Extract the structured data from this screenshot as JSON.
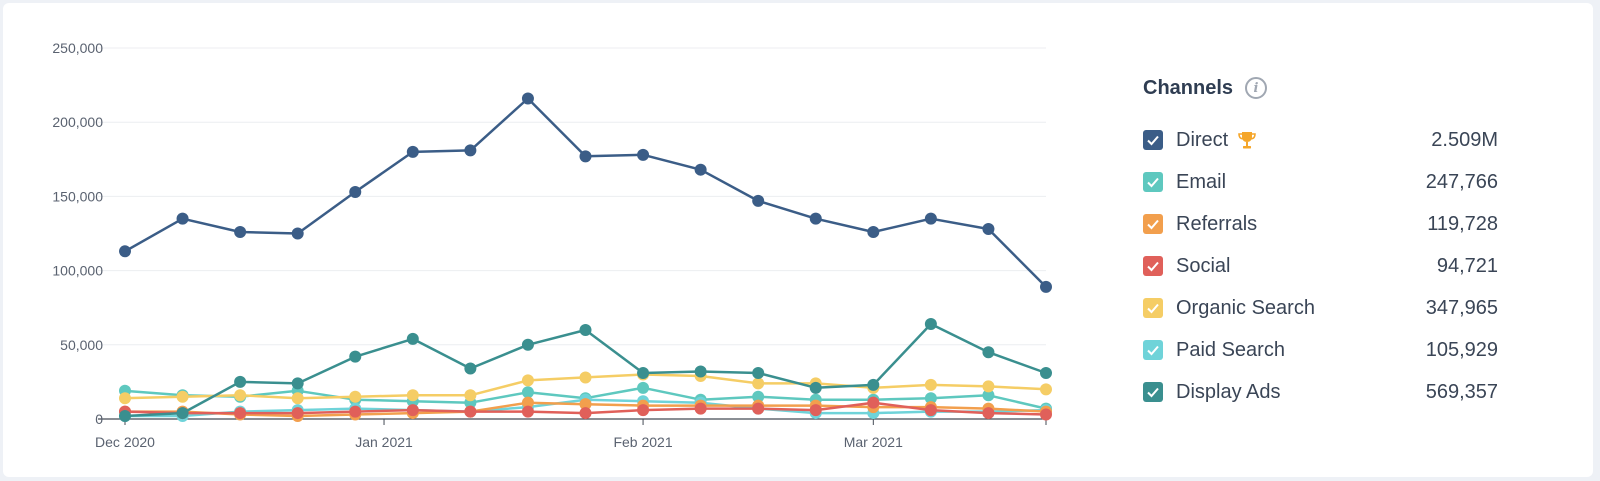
{
  "legend": {
    "title": "Channels",
    "info_icon": "info-icon",
    "items": [
      {
        "name": "Direct",
        "value": "2.509M",
        "color": "#3b5d87",
        "badge_icon": "trophy-icon"
      },
      {
        "name": "Email",
        "value": "247,766",
        "color": "#5ec8bf"
      },
      {
        "name": "Referrals",
        "value": "119,728",
        "color": "#f29f4d"
      },
      {
        "name": "Social",
        "value": "94,721",
        "color": "#e0605a"
      },
      {
        "name": "Organic Search",
        "value": "347,965",
        "color": "#f5cd65"
      },
      {
        "name": "Paid Search",
        "value": "105,929",
        "color": "#6fd3d9"
      },
      {
        "name": "Display Ads",
        "value": "569,357",
        "color": "#3a8f8f"
      }
    ]
  },
  "chart_data": {
    "type": "line",
    "ylim": [
      0,
      250000
    ],
    "y_ticks": [
      0,
      50000,
      100000,
      150000,
      200000,
      250000
    ],
    "y_tick_labels": [
      "0",
      "50,000",
      "100,000",
      "150,000",
      "200,000",
      "250,000"
    ],
    "x_ticks": [
      {
        "label": "Dec 2020",
        "index": 0
      },
      {
        "label": "Jan 2021",
        "index": 4.5
      },
      {
        "label": "Feb 2021",
        "index": 9
      },
      {
        "label": "Mar 2021",
        "index": 13
      },
      {
        "label": "",
        "index": 16
      }
    ],
    "x": [
      "2020-12-01",
      "2020-12-08",
      "2020-12-15",
      "2020-12-22",
      "2020-12-29",
      "2021-01-05",
      "2021-01-12",
      "2021-01-19",
      "2021-01-26",
      "2021-02-02",
      "2021-02-09",
      "2021-02-16",
      "2021-02-23",
      "2021-03-02",
      "2021-03-09",
      "2021-03-16",
      "2021-03-23"
    ],
    "grid": true,
    "legend_position": "right",
    "series": [
      {
        "name": "Email",
        "color": "#5ec8bf",
        "values": [
          19000,
          16000,
          15000,
          19000,
          13000,
          12000,
          11000,
          18000,
          14000,
          21000,
          13000,
          15000,
          13000,
          13000,
          14000,
          16000,
          7000
        ]
      },
      {
        "name": "Paid Search",
        "color": "#6fd3d9",
        "values": [
          2000,
          2000,
          5000,
          6000,
          7000,
          6000,
          5000,
          8000,
          13000,
          12000,
          11000,
          7000,
          4000,
          4000,
          5000,
          5000,
          6000
        ]
      },
      {
        "name": "Referrals",
        "color": "#f29f4d",
        "values": [
          5000,
          5000,
          3000,
          2000,
          3000,
          4000,
          5000,
          11000,
          10000,
          9000,
          9000,
          9000,
          9000,
          8000,
          8000,
          7000,
          5000
        ]
      },
      {
        "name": "Social",
        "color": "#e0605a",
        "values": [
          5000,
          4000,
          4000,
          4000,
          5000,
          6000,
          5000,
          5000,
          4000,
          6000,
          7000,
          7000,
          6000,
          11000,
          6000,
          4000,
          3000
        ]
      },
      {
        "name": "Organic Search",
        "color": "#f5cd65",
        "values": [
          14000,
          15000,
          16000,
          14000,
          15000,
          16000,
          16000,
          26000,
          28000,
          30000,
          29000,
          24000,
          24000,
          21000,
          23000,
          22000,
          20000
        ]
      },
      {
        "name": "Display Ads",
        "color": "#3a8f8f",
        "values": [
          2000,
          4000,
          25000,
          24000,
          42000,
          54000,
          34000,
          50000,
          60000,
          31000,
          32000,
          31000,
          21000,
          23000,
          64000,
          45000,
          31000
        ]
      },
      {
        "name": "Direct",
        "color": "#3b5d87",
        "values": [
          113000,
          135000,
          126000,
          125000,
          153000,
          180000,
          181000,
          216000,
          177000,
          178000,
          168000,
          147000,
          135000,
          126000,
          135000,
          128000,
          89000
        ]
      }
    ]
  }
}
